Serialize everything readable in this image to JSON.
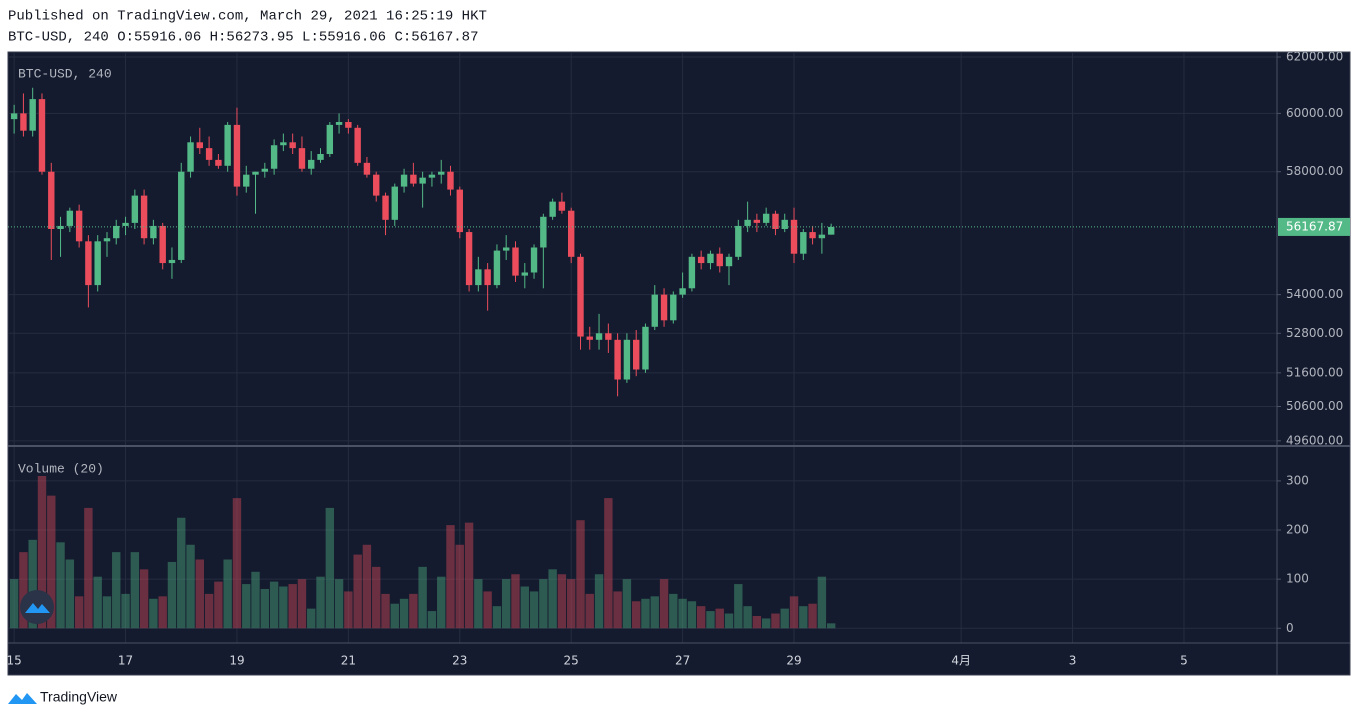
{
  "header": {
    "published": "Published on TradingView.com, March 29, 2021 16:25:19 HKT",
    "legend": "BTC-USD, 240 O:55916.06 H:56273.95 L:55916.06 C:56167.87"
  },
  "chart_data": {
    "type": "candlestick",
    "title": "BTC-USD, 240",
    "x": [
      15,
      15.167,
      15.333,
      15.5,
      15.667,
      15.833,
      16,
      16.167,
      16.333,
      16.5,
      16.667,
      16.833,
      17,
      17.167,
      17.333,
      17.5,
      17.667,
      17.833,
      18,
      18.167,
      18.333,
      18.5,
      18.667,
      18.833,
      19,
      19.167,
      19.333,
      19.5,
      19.667,
      19.833,
      20,
      20.167,
      20.333,
      20.5,
      20.667,
      20.833,
      21,
      21.167,
      21.333,
      21.5,
      21.667,
      21.833,
      22,
      22.167,
      22.333,
      22.5,
      22.667,
      22.833,
      23,
      23.167,
      23.333,
      23.5,
      23.667,
      23.833,
      24,
      24.167,
      24.333,
      24.5,
      24.667,
      24.833,
      25,
      25.167,
      25.333,
      25.5,
      25.667,
      25.833,
      26,
      26.167,
      26.333,
      26.5,
      26.667,
      26.833,
      27,
      27.167,
      27.333,
      27.5,
      27.667,
      27.833,
      28,
      28.167,
      28.333,
      28.5,
      28.667,
      28.833,
      29,
      29.167,
      29.333,
      29.5,
      29.667
    ],
    "open": [
      59800,
      60000,
      59400,
      60500,
      58000,
      56100,
      56200,
      56700,
      55700,
      54300,
      55700,
      55800,
      56200,
      56300,
      57200,
      55800,
      56200,
      55000,
      55100,
      58000,
      59000,
      58800,
      58400,
      58200,
      59600,
      57500,
      57900,
      58000,
      58100,
      58900,
      59000,
      58800,
      58100,
      58400,
      58600,
      59600,
      59700,
      59500,
      58300,
      57900,
      57200,
      56400,
      57500,
      57900,
      57600,
      57800,
      57900,
      58000,
      57400,
      56000,
      54300,
      54800,
      54300,
      55400,
      55500,
      54600,
      54700,
      55500,
      56500,
      57000,
      56700,
      55200,
      52700,
      52600,
      52800,
      52600,
      51400,
      52600,
      51700,
      53000,
      54000,
      53200,
      54000,
      54200,
      55200,
      55000,
      55300,
      54900,
      55200,
      56200,
      56400,
      56300,
      56600,
      56100,
      56400,
      55300,
      56000,
      55800,
      55916.06
    ],
    "high": [
      60300,
      60700,
      60900,
      60700,
      58300,
      56500,
      56800,
      56900,
      55900,
      55900,
      56000,
      56400,
      56500,
      57400,
      57400,
      56400,
      56300,
      55500,
      58300,
      59200,
      59500,
      59200,
      58600,
      59700,
      60200,
      58200,
      58000,
      58300,
      59100,
      59300,
      59300,
      59200,
      58700,
      58800,
      59700,
      60000,
      59800,
      59600,
      58500,
      58000,
      57300,
      57600,
      58100,
      58300,
      58000,
      58000,
      58400,
      58200,
      57500,
      56100,
      55200,
      55000,
      55600,
      55900,
      55700,
      55000,
      55600,
      56600,
      57100,
      57300,
      56800,
      55300,
      53000,
      53400,
      53100,
      52800,
      52800,
      52900,
      53100,
      54300,
      54200,
      54100,
      54700,
      55300,
      55400,
      55400,
      55500,
      55300,
      56400,
      57000,
      56600,
      56800,
      56700,
      56600,
      56800,
      56100,
      56200,
      56300,
      56273.95
    ],
    "low": [
      59300,
      59200,
      59200,
      57900,
      55100,
      55200,
      56000,
      55500,
      53600,
      54100,
      55200,
      55600,
      55900,
      56100,
      55600,
      55600,
      54800,
      54500,
      55000,
      57800,
      58600,
      58200,
      58100,
      58000,
      57200,
      57300,
      56600,
      57800,
      57900,
      58700,
      58600,
      58000,
      57900,
      58300,
      58500,
      59300,
      59300,
      58200,
      57800,
      57000,
      55900,
      56200,
      57300,
      57500,
      56800,
      57500,
      57600,
      57200,
      55800,
      54100,
      54100,
      53500,
      54200,
      55100,
      54400,
      54200,
      54500,
      54200,
      56400,
      56600,
      55000,
      52300,
      52300,
      52300,
      52200,
      50900,
      51300,
      51500,
      51600,
      52900,
      53000,
      53100,
      53900,
      54100,
      54800,
      54800,
      54700,
      54300,
      55100,
      56000,
      56000,
      56200,
      55900,
      56000,
      55000,
      55100,
      55600,
      55300,
      55916.06
    ],
    "close": [
      60000,
      59400,
      60500,
      58000,
      56100,
      56200,
      56700,
      55700,
      54300,
      55700,
      55800,
      56200,
      56300,
      57200,
      55800,
      56200,
      55000,
      55100,
      58000,
      59000,
      58800,
      58400,
      58200,
      59600,
      57500,
      57900,
      58000,
      58100,
      58900,
      59000,
      58800,
      58100,
      58400,
      58600,
      59600,
      59700,
      59500,
      58300,
      57900,
      57200,
      56400,
      57500,
      57900,
      57600,
      57800,
      57900,
      58000,
      57400,
      56000,
      54300,
      54800,
      54300,
      55400,
      55500,
      54600,
      54700,
      55500,
      56500,
      57000,
      56700,
      55200,
      52700,
      52600,
      52800,
      52600,
      51400,
      52600,
      51700,
      53000,
      54000,
      53200,
      54000,
      54200,
      55200,
      55000,
      55300,
      54900,
      55200,
      56200,
      56400,
      56300,
      56600,
      56100,
      56400,
      55300,
      56000,
      55800,
      55916.06,
      56167.87
    ],
    "up_color": "#53b987",
    "down_color": "#eb4d5c",
    "log_scale": true,
    "grid": true,
    "ylim": [
      49480,
      62180
    ],
    "yticks": [
      {
        "value": 49600,
        "label": "49600.00"
      },
      {
        "value": 50600,
        "label": "50600.00"
      },
      {
        "value": 51600,
        "label": "51600.00"
      },
      {
        "value": 52800,
        "label": "52800.00"
      },
      {
        "value": 54000,
        "label": "54000.00"
      },
      {
        "value": 58000,
        "label": "58000.00"
      },
      {
        "value": 60000,
        "label": "60000.00"
      },
      {
        "value": 62000,
        "label": "62000.00"
      }
    ],
    "xlim": [
      14.89,
      37.67
    ],
    "xticks": [
      15,
      17,
      19,
      21,
      23,
      25,
      27,
      29,
      {
        "value": 32,
        "label": "4月"
      },
      {
        "value": 34,
        "label": "3"
      },
      {
        "value": 36,
        "label": "5"
      }
    ],
    "volume": {
      "title": "Volume (20)",
      "values": [
        100,
        155,
        180,
        310,
        270,
        175,
        140,
        65,
        245,
        105,
        65,
        155,
        70,
        155,
        120,
        60,
        65,
        135,
        225,
        170,
        140,
        70,
        95,
        140,
        265,
        90,
        115,
        80,
        95,
        85,
        90,
        100,
        40,
        105,
        245,
        100,
        75,
        150,
        170,
        125,
        70,
        50,
        60,
        70,
        125,
        35,
        105,
        210,
        170,
        215,
        100,
        75,
        45,
        100,
        110,
        85,
        75,
        100,
        120,
        110,
        100,
        220,
        70,
        110,
        265,
        75,
        100,
        55,
        60,
        65,
        100,
        70,
        60,
        55,
        45,
        35,
        40,
        30,
        90,
        45,
        25,
        20,
        30,
        40,
        65,
        45,
        50,
        105,
        10
      ],
      "ylim": [
        -30,
        367
      ],
      "yticks": [
        0,
        100,
        200,
        300
      ]
    }
  },
  "footer": {
    "brand": "TradingView"
  }
}
